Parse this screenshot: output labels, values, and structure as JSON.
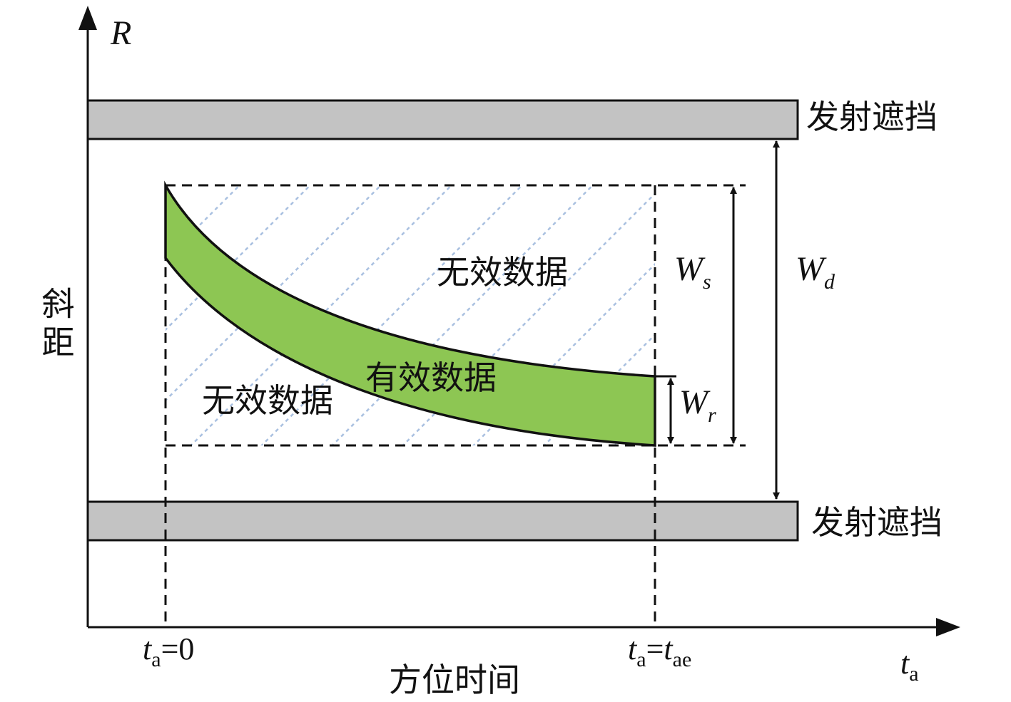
{
  "axes": {
    "y_label": "R",
    "y_title": "斜距",
    "x_title": "方位时间",
    "x_label": {
      "base": "t",
      "sub": "a"
    }
  },
  "blocks": {
    "top": "发射遮挡",
    "bottom": "发射遮挡"
  },
  "regions": {
    "invalid_upper": "无效数据",
    "invalid_lower": "无效数据",
    "valid": "有效数据"
  },
  "widths": {
    "ws": {
      "base": "W",
      "sub": "s"
    },
    "wd": {
      "base": "W",
      "sub": "d"
    },
    "wr": {
      "base": "W",
      "sub": "r"
    }
  },
  "time_marks": {
    "start": {
      "base": "t",
      "sub": "a",
      "rest": "=0"
    },
    "end": {
      "base": "t",
      "sub": "a",
      "rest": "=",
      "base2": "t",
      "sub2": "ae"
    }
  }
}
